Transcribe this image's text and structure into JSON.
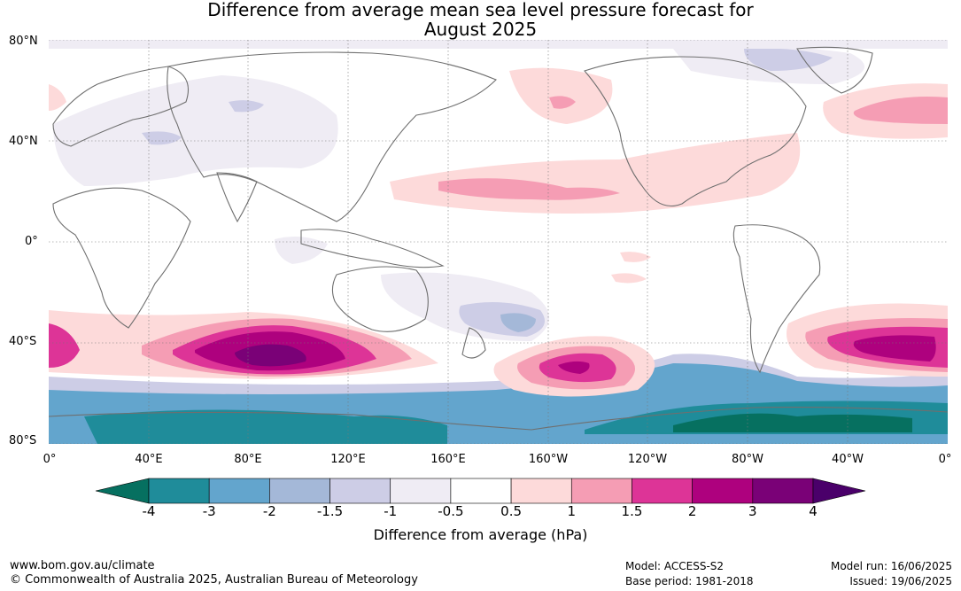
{
  "title": {
    "line1": "Difference from average mean sea level pressure forecast for",
    "line2": "August 2025"
  },
  "map": {
    "y_ticks": [
      "80°N",
      "40°N",
      "0°",
      "40°S",
      "80°S"
    ],
    "x_ticks": [
      "0°",
      "40°E",
      "80°E",
      "120°E",
      "160°E",
      "160°W",
      "120°W",
      "80°W",
      "40°W",
      "0°"
    ]
  },
  "colorbar": {
    "ticks": [
      "-4",
      "-3",
      "-2",
      "-1.5",
      "-1",
      "-0.5",
      "0.5",
      "1",
      "1.5",
      "2",
      "3",
      "4"
    ],
    "colors": [
      "#067060",
      "#1f8c9a",
      "#63a5cd",
      "#a4b8d8",
      "#cdcde6",
      "#efecf4",
      "#ffffff",
      "#fddada",
      "#f59db4",
      "#dd3497",
      "#ae017e",
      "#7a0177",
      "#4a006a"
    ],
    "label": "Difference from average (hPa)"
  },
  "footer": {
    "url": "www.bom.gov.au/climate",
    "copyright": "© Commonwealth of Australia 2025, Australian Bureau of Meteorology",
    "model": "Model: ACCESS-S2",
    "base_period": "Base period: 1981-2018",
    "model_run": "Model run: 16/06/2025",
    "issued": "Issued: 19/06/2025"
  }
}
